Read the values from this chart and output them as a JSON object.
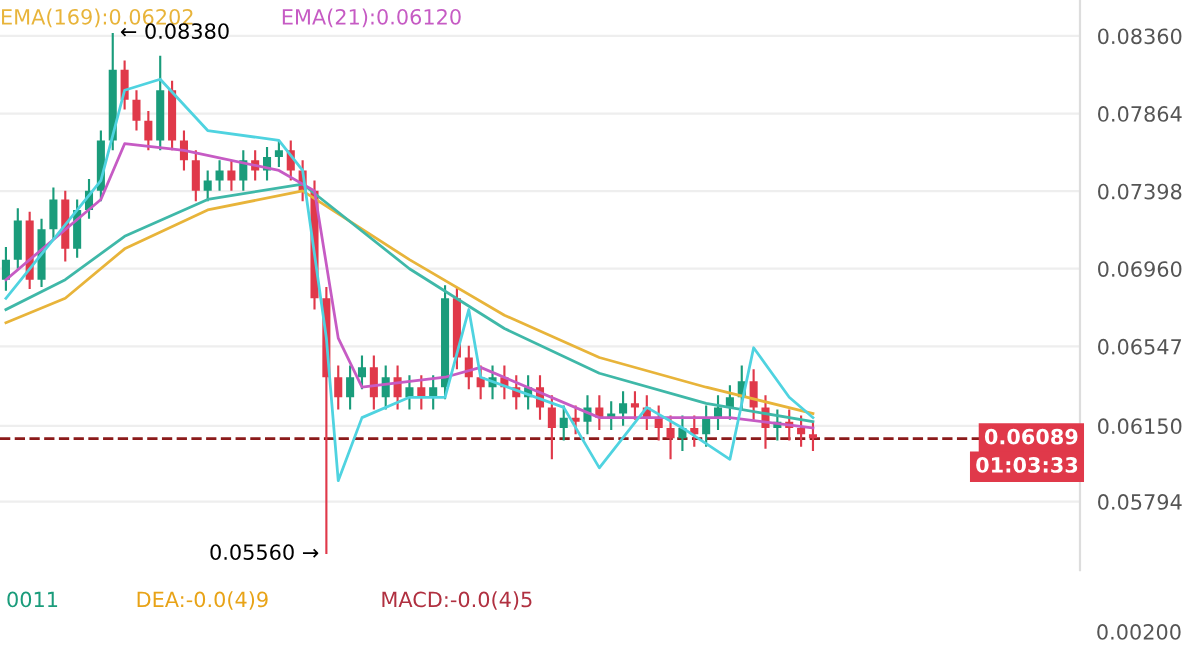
{
  "chart_data": {
    "type": "candlestick",
    "categories": [
      null,
      null,
      null,
      null,
      null,
      null,
      null,
      null,
      null,
      null,
      null,
      null,
      null,
      null,
      null,
      null,
      null,
      null,
      null,
      null,
      null,
      null,
      null,
      null,
      null,
      null,
      null,
      null,
      null,
      null,
      null,
      null,
      null,
      null,
      null,
      null,
      null,
      null,
      null,
      null,
      null,
      null,
      null,
      null,
      null,
      null,
      null,
      null,
      null,
      null,
      null,
      null,
      null,
      null,
      null,
      null,
      null,
      null,
      null,
      null,
      null,
      null,
      null,
      null,
      null,
      null,
      null,
      null,
      null,
      null,
      null,
      null,
      null,
      null,
      null,
      null,
      null,
      null,
      null,
      null,
      null,
      null,
      null,
      null,
      null,
      null,
      null,
      null,
      null,
      null,
      null
    ],
    "ohlc": [
      [
        0.069,
        0.0708,
        0.0684,
        0.0701
      ],
      [
        0.0701,
        0.073,
        0.0696,
        0.0723
      ],
      [
        0.0723,
        0.0728,
        0.0685,
        0.069
      ],
      [
        0.069,
        0.0724,
        0.0686,
        0.0718
      ],
      [
        0.0718,
        0.0742,
        0.0712,
        0.0735
      ],
      [
        0.0735,
        0.074,
        0.07,
        0.0707
      ],
      [
        0.0707,
        0.0735,
        0.0702,
        0.0729
      ],
      [
        0.0729,
        0.0747,
        0.0724,
        0.074
      ],
      [
        0.074,
        0.0776,
        0.0734,
        0.077
      ],
      [
        0.077,
        0.0838,
        0.0764,
        0.0814
      ],
      [
        0.0814,
        0.082,
        0.0789,
        0.0795
      ],
      [
        0.0795,
        0.0801,
        0.0776,
        0.0782
      ],
      [
        0.0782,
        0.0788,
        0.0764,
        0.077
      ],
      [
        0.077,
        0.0823,
        0.0764,
        0.0801
      ],
      [
        0.0801,
        0.0807,
        0.0764,
        0.077
      ],
      [
        0.077,
        0.0776,
        0.0752,
        0.0758
      ],
      [
        0.0758,
        0.0764,
        0.0734,
        0.074
      ],
      [
        0.074,
        0.0752,
        0.0734,
        0.0746
      ],
      [
        0.0746,
        0.0758,
        0.074,
        0.0752
      ],
      [
        0.0752,
        0.0758,
        0.074,
        0.0746
      ],
      [
        0.0746,
        0.0764,
        0.074,
        0.0758
      ],
      [
        0.0758,
        0.0764,
        0.0746,
        0.0752
      ],
      [
        0.0752,
        0.0766,
        0.0746,
        0.076
      ],
      [
        0.076,
        0.077,
        0.0754,
        0.0764
      ],
      [
        0.0764,
        0.077,
        0.0746,
        0.0752
      ],
      [
        0.0752,
        0.0758,
        0.0734,
        0.074
      ],
      [
        0.074,
        0.0746,
        0.0674,
        0.068
      ],
      [
        0.068,
        0.0686,
        0.0556,
        0.0639
      ],
      [
        0.0639,
        0.0645,
        0.0623,
        0.0629
      ],
      [
        0.0629,
        0.0645,
        0.0623,
        0.0639
      ],
      [
        0.0639,
        0.065,
        0.0633,
        0.0644
      ],
      [
        0.0644,
        0.065,
        0.0623,
        0.0629
      ],
      [
        0.0629,
        0.0645,
        0.0623,
        0.0639
      ],
      [
        0.0639,
        0.0645,
        0.0623,
        0.0629
      ],
      [
        0.0629,
        0.064,
        0.0623,
        0.0634
      ],
      [
        0.0634,
        0.064,
        0.0623,
        0.0629
      ],
      [
        0.0629,
        0.064,
        0.0623,
        0.0634
      ],
      [
        0.0634,
        0.0687,
        0.0628,
        0.068
      ],
      [
        0.068,
        0.0686,
        0.0643,
        0.0649
      ],
      [
        0.0649,
        0.0655,
        0.0633,
        0.0639
      ],
      [
        0.0639,
        0.0645,
        0.0628,
        0.0634
      ],
      [
        0.0634,
        0.0645,
        0.0628,
        0.0639
      ],
      [
        0.0639,
        0.0645,
        0.0628,
        0.0634
      ],
      [
        0.0634,
        0.064,
        0.0623,
        0.0629
      ],
      [
        0.0629,
        0.064,
        0.0623,
        0.0634
      ],
      [
        0.0634,
        0.064,
        0.0618,
        0.0624
      ],
      [
        0.0624,
        0.063,
        0.0599,
        0.0614
      ],
      [
        0.0614,
        0.0625,
        0.0608,
        0.0619
      ],
      [
        0.0619,
        0.0625,
        0.0611,
        0.0617
      ],
      [
        0.0617,
        0.063,
        0.0611,
        0.0624
      ],
      [
        0.0624,
        0.063,
        0.0613,
        0.0619
      ],
      [
        0.0619,
        0.0627,
        0.0613,
        0.0621
      ],
      [
        0.0621,
        0.0632,
        0.0615,
        0.0626
      ],
      [
        0.0626,
        0.0632,
        0.0618,
        0.0624
      ],
      [
        0.0624,
        0.063,
        0.0613,
        0.0619
      ],
      [
        0.0619,
        0.0625,
        0.0608,
        0.0614
      ],
      [
        0.0614,
        0.062,
        0.0599,
        0.0609
      ],
      [
        0.0609,
        0.062,
        0.0603,
        0.0614
      ],
      [
        0.0614,
        0.062,
        0.0605,
        0.0611
      ],
      [
        0.0611,
        0.0625,
        0.0605,
        0.0619
      ],
      [
        0.0619,
        0.063,
        0.0613,
        0.0624
      ],
      [
        0.0624,
        0.0635,
        0.0618,
        0.0629
      ],
      [
        0.0629,
        0.0645,
        0.0623,
        0.0637
      ],
      [
        0.0637,
        0.0643,
        0.0618,
        0.0624
      ],
      [
        0.0624,
        0.063,
        0.0604,
        0.0614
      ],
      [
        0.0614,
        0.0623,
        0.0608,
        0.0617
      ],
      [
        0.0617,
        0.0623,
        0.0608,
        0.0614
      ],
      [
        0.0614,
        0.062,
        0.0605,
        0.0611
      ],
      [
        0.0611,
        0.0617,
        0.0603,
        0.0609
      ],
      null,
      null,
      null,
      null,
      null,
      null,
      null,
      null,
      null,
      null,
      null,
      null,
      null,
      null,
      null,
      null,
      null,
      null,
      null,
      null,
      null,
      null
    ],
    "colors": [
      "#1a9c7b",
      "#1a9c7b",
      "#e0394a",
      "#1a9c7b",
      "#1a9c7b",
      "#e0394a",
      "#1a9c7b",
      "#1a9c7b",
      "#1a9c7b",
      "#1a9c7b",
      "#e0394a",
      "#e0394a",
      "#e0394a",
      "#1a9c7b",
      "#e0394a",
      "#e0394a",
      "#e0394a",
      "#1a9c7b",
      "#1a9c7b",
      "#e0394a",
      "#1a9c7b",
      "#e0394a",
      "#1a9c7b",
      "#1a9c7b",
      "#e0394a",
      "#e0394a",
      "#e0394a",
      "#e0394a",
      "#e0394a",
      "#1a9c7b",
      "#1a9c7b",
      "#e0394a",
      "#1a9c7b",
      "#e0394a",
      "#1a9c7b",
      "#e0394a",
      "#1a9c7b",
      "#1a9c7b",
      "#e0394a",
      "#e0394a",
      "#e0394a",
      "#1a9c7b",
      "#e0394a",
      "#e0394a",
      "#1a9c7b",
      "#e0394a",
      "#e0394a",
      "#1a9c7b",
      "#e0394a",
      "#1a9c7b",
      "#e0394a",
      "#1a9c7b",
      "#1a9c7b",
      "#e0394a",
      "#e0394a",
      "#e0394a",
      "#e0394a",
      "#1a9c7b",
      "#e0394a",
      "#1a9c7b",
      "#1a9c7b",
      "#1a9c7b",
      "#1a9c7b",
      "#e0394a",
      "#e0394a",
      "#1a9c7b",
      "#e0394a",
      "#e0394a",
      "#e0394a",
      null,
      null,
      null,
      null,
      null,
      null,
      null,
      null,
      null,
      null,
      null,
      null,
      null,
      null,
      null,
      null,
      null,
      null,
      null,
      null,
      null,
      null
    ],
    "series": [
      {
        "name": "EMA(169):0.06202",
        "color": "#e8b43a",
        "type": "line",
        "values": [
          0.0667,
          null,
          null,
          null,
          null,
          0.068,
          null,
          null,
          null,
          null,
          0.0707,
          null,
          null,
          null,
          null,
          null,
          null,
          0.0729,
          null,
          null,
          null,
          null,
          null,
          null,
          null,
          0.074,
          null,
          null,
          null,
          null,
          null,
          null,
          null,
          null,
          0.0701,
          null,
          null,
          null,
          null,
          null,
          null,
          null,
          0.0671,
          null,
          null,
          null,
          null,
          null,
          null,
          null,
          0.0649,
          null,
          null,
          null,
          null,
          null,
          null,
          null,
          null,
          0.0634,
          null,
          null,
          null,
          null,
          null,
          null,
          null,
          null,
          0.0621,
          null,
          null,
          null,
          null,
          null,
          null,
          null,
          null,
          null,
          null,
          null,
          null,
          null,
          null,
          null,
          null,
          null,
          null,
          null,
          null,
          null,
          null
        ]
      },
      {
        "color": "#3fb8a8",
        "type": "line",
        "values": [
          0.0674,
          null,
          null,
          null,
          null,
          0.069,
          null,
          null,
          null,
          null,
          0.0714,
          null,
          null,
          null,
          null,
          null,
          null,
          0.0735,
          null,
          null,
          null,
          null,
          null,
          null,
          null,
          0.0744,
          null,
          null,
          null,
          null,
          null,
          null,
          null,
          null,
          0.0696,
          null,
          null,
          null,
          null,
          null,
          null,
          null,
          0.0664,
          null,
          null,
          null,
          null,
          null,
          null,
          null,
          0.0641,
          null,
          null,
          null,
          null,
          null,
          null,
          null,
          null,
          0.0626,
          null,
          null,
          null,
          null,
          null,
          null,
          null,
          null,
          0.0617,
          null,
          null,
          null,
          null,
          null,
          null,
          null,
          null,
          null,
          null,
          null,
          null,
          null,
          null,
          null,
          null,
          null,
          null,
          null,
          null,
          null,
          null
        ]
      },
      {
        "name": "EMA(21):0.06120",
        "color": "#c65bc4",
        "type": "line",
        "values": [
          0.069,
          null,
          null,
          null,
          null,
          null,
          null,
          null,
          0.0735,
          null,
          0.0768,
          null,
          null,
          null,
          null,
          0.0764,
          null,
          null,
          null,
          null,
          null,
          null,
          null,
          0.0752,
          null,
          null,
          0.074,
          null,
          0.0659,
          null,
          0.0634,
          null,
          null,
          null,
          null,
          null,
          null,
          0.0639,
          null,
          null,
          0.0644,
          null,
          null,
          null,
          null,
          null,
          null,
          null,
          null,
          null,
          0.0619,
          null,
          null,
          null,
          null,
          null,
          null,
          null,
          null,
          null,
          null,
          0.0619,
          null,
          null,
          null,
          null,
          null,
          null,
          0.0614,
          null,
          null,
          null,
          null,
          null,
          null,
          null,
          null,
          null,
          null,
          null,
          null,
          null,
          null,
          null,
          null,
          null,
          null,
          null,
          null,
          null,
          null
        ]
      },
      {
        "color": "#4fd3e0",
        "type": "line",
        "values": [
          0.068,
          null,
          null,
          null,
          null,
          null,
          null,
          null,
          0.0746,
          null,
          0.0801,
          null,
          null,
          0.0808,
          null,
          null,
          null,
          0.0776,
          null,
          null,
          null,
          null,
          null,
          0.077,
          null,
          0.0752,
          null,
          0.0659,
          0.0589,
          null,
          0.0619,
          null,
          null,
          null,
          0.0629,
          null,
          null,
          0.0629,
          null,
          0.0674,
          0.0639,
          null,
          null,
          null,
          null,
          null,
          null,
          0.0624,
          null,
          null,
          0.0595,
          null,
          null,
          null,
          0.0624,
          null,
          null,
          0.0614,
          null,
          null,
          null,
          0.0599,
          null,
          0.0654,
          null,
          null,
          0.0629,
          null,
          0.0619,
          null,
          null,
          null,
          null,
          null,
          null,
          null,
          null,
          null,
          null,
          null,
          null,
          null,
          null,
          null,
          null,
          null,
          null,
          null,
          null,
          null,
          null
        ]
      }
    ],
    "log": "y",
    "ylim": [
      0.0549,
      0.086
    ],
    "yticks": [
      {
        "value": 0.0836,
        "label": "0.08360"
      },
      0.07864,
      0.07398,
      {
        "value": 0.0696,
        "label": "0.06960"
      },
      0.06547,
      {
        "value": 0.0615,
        "label": "0.06150"
      },
      0.05794
    ],
    "grid": "y",
    "ref_lines": [
      {
        "axis": "y",
        "value": 0.06089,
        "label": "0.06089",
        "color": "#8b1a1a",
        "line_style": "dashed"
      }
    ],
    "annotations": [
      "← 0.08380",
      "0.05560 →",
      "01:03:33",
      "0011",
      "DEA:-0.0(4)9",
      "MACD:-0.0(4)5",
      "0.00200"
    ]
  }
}
